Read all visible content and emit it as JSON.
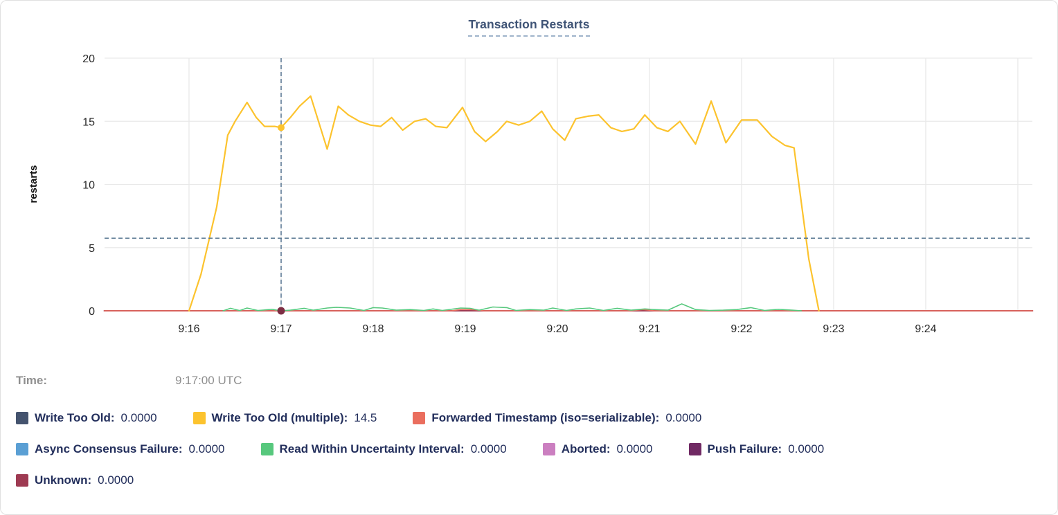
{
  "tooltip": {
    "time_label": "Time:",
    "time_value": "9:17:00 UTC"
  },
  "legend": {
    "rows": [
      [
        0,
        1,
        2
      ],
      [
        3,
        4,
        5,
        6
      ],
      [
        7
      ]
    ]
  },
  "chart_data": {
    "type": "line",
    "title": "Transaction Restarts",
    "xlabel": "",
    "ylabel": "restarts",
    "x_unit": "minutes after 9:00 UTC",
    "xlim": [
      15.08,
      25.16
    ],
    "ylim": [
      0,
      20
    ],
    "grid": "on",
    "legend_position": "bottom",
    "yticks": [
      0,
      5,
      10,
      15,
      20
    ],
    "xgrid_minutes": [
      16,
      17,
      18,
      19,
      20,
      21,
      22,
      23,
      24,
      25
    ],
    "xticks": [
      {
        "m": 16,
        "label": "9:16"
      },
      {
        "m": 17,
        "label": "9:17"
      },
      {
        "m": 18,
        "label": "9:18"
      },
      {
        "m": 19,
        "label": "9:19"
      },
      {
        "m": 20,
        "label": "9:20"
      },
      {
        "m": 21,
        "label": "9:21"
      },
      {
        "m": 22,
        "label": "9:22"
      },
      {
        "m": 23,
        "label": "9:23"
      },
      {
        "m": 24,
        "label": "9:24"
      }
    ],
    "colors": {
      "grid": "#e9e9e9",
      "axis_text": "#262626",
      "crosshair": "#54738f"
    },
    "crosshair": {
      "x": 17.0,
      "y": 5.75,
      "time": "9:17:00 UTC"
    },
    "markers": [
      {
        "series_index": 1,
        "x": 17.0,
        "y": 14.5,
        "color": "#fcc32e",
        "r": 5
      },
      {
        "series_index": 7,
        "x": 17.0,
        "y": 0,
        "color": "#7d2d43",
        "r": 5.5
      }
    ],
    "series": [
      {
        "name": "Write Too Old",
        "legend_label": "Write Too Old:",
        "cursor_value": "0.0000",
        "color": "#44536e",
        "w": 1.5,
        "points": [
          [
            15.08,
            0
          ],
          [
            25.16,
            0
          ]
        ]
      },
      {
        "name": "Write Too Old (multiple)",
        "legend_label": "Write Too Old (multiple):",
        "cursor_value": "14.5",
        "color": "#fcc32e",
        "w": 2.2,
        "points": [
          [
            16.0,
            0
          ],
          [
            16.13,
            2.9
          ],
          [
            16.3,
            8.2
          ],
          [
            16.42,
            13.9
          ],
          [
            16.5,
            15.0
          ],
          [
            16.63,
            16.5
          ],
          [
            16.73,
            15.3
          ],
          [
            16.82,
            14.6
          ],
          [
            16.93,
            14.6
          ],
          [
            17.0,
            14.5
          ],
          [
            17.1,
            15.3
          ],
          [
            17.2,
            16.2
          ],
          [
            17.32,
            17.0
          ],
          [
            17.5,
            12.8
          ],
          [
            17.62,
            16.2
          ],
          [
            17.73,
            15.5
          ],
          [
            17.85,
            15.0
          ],
          [
            17.97,
            14.7
          ],
          [
            18.08,
            14.6
          ],
          [
            18.2,
            15.3
          ],
          [
            18.32,
            14.3
          ],
          [
            18.45,
            15.0
          ],
          [
            18.57,
            15.2
          ],
          [
            18.68,
            14.6
          ],
          [
            18.8,
            14.5
          ],
          [
            18.97,
            16.1
          ],
          [
            19.1,
            14.2
          ],
          [
            19.22,
            13.4
          ],
          [
            19.35,
            14.2
          ],
          [
            19.45,
            15.0
          ],
          [
            19.58,
            14.7
          ],
          [
            19.7,
            15.0
          ],
          [
            19.83,
            15.8
          ],
          [
            19.95,
            14.4
          ],
          [
            20.08,
            13.5
          ],
          [
            20.2,
            15.2
          ],
          [
            20.33,
            15.4
          ],
          [
            20.45,
            15.5
          ],
          [
            20.58,
            14.5
          ],
          [
            20.7,
            14.2
          ],
          [
            20.83,
            14.4
          ],
          [
            20.95,
            15.5
          ],
          [
            21.08,
            14.5
          ],
          [
            21.2,
            14.2
          ],
          [
            21.33,
            15.0
          ],
          [
            21.5,
            13.2
          ],
          [
            21.67,
            16.6
          ],
          [
            21.83,
            13.3
          ],
          [
            22.0,
            15.1
          ],
          [
            22.17,
            15.1
          ],
          [
            22.33,
            13.8
          ],
          [
            22.47,
            13.1
          ],
          [
            22.57,
            12.9
          ],
          [
            22.73,
            4.1
          ],
          [
            22.84,
            0
          ]
        ]
      },
      {
        "name": "Forwarded Timestamp (iso=serializable)",
        "legend_label": "Forwarded Timestamp (iso=serializable):",
        "cursor_value": "0.0000",
        "color": "#ea6e5e",
        "w": 1.6,
        "points": [
          [
            15.08,
            0
          ],
          [
            18.85,
            0
          ],
          [
            18.97,
            0.12
          ],
          [
            19.1,
            0.08
          ],
          [
            19.2,
            0
          ],
          [
            20.8,
            0
          ],
          [
            20.93,
            0.1
          ],
          [
            21.05,
            0
          ],
          [
            25.16,
            0
          ]
        ]
      },
      {
        "name": "Async Consensus Failure",
        "legend_label": "Async Consensus Failure:",
        "cursor_value": "0.0000",
        "color": "#5a9fd4",
        "w": 1.5,
        "points": [
          [
            15.08,
            0
          ],
          [
            25.16,
            0
          ]
        ]
      },
      {
        "name": "Read Within Uncertainty Interval",
        "legend_label": "Read Within Uncertainty Interval:",
        "cursor_value": "0.0000",
        "color": "#57c87d",
        "w": 1.6,
        "points": [
          [
            16.37,
            0
          ],
          [
            16.45,
            0.2
          ],
          [
            16.55,
            0.02
          ],
          [
            16.63,
            0.22
          ],
          [
            16.75,
            0.02
          ],
          [
            16.9,
            0.12
          ],
          [
            17.0,
            0
          ],
          [
            17.1,
            0.05
          ],
          [
            17.25,
            0.2
          ],
          [
            17.35,
            0.05
          ],
          [
            17.5,
            0.22
          ],
          [
            17.6,
            0.28
          ],
          [
            17.75,
            0.22
          ],
          [
            17.9,
            0.03
          ],
          [
            18.0,
            0.25
          ],
          [
            18.1,
            0.22
          ],
          [
            18.25,
            0.05
          ],
          [
            18.4,
            0.1
          ],
          [
            18.55,
            0.03
          ],
          [
            18.65,
            0.15
          ],
          [
            18.75,
            0.03
          ],
          [
            18.95,
            0.22
          ],
          [
            19.05,
            0.2
          ],
          [
            19.15,
            0.05
          ],
          [
            19.3,
            0.3
          ],
          [
            19.45,
            0.25
          ],
          [
            19.55,
            0.03
          ],
          [
            19.7,
            0.1
          ],
          [
            19.85,
            0.05
          ],
          [
            19.95,
            0.22
          ],
          [
            20.1,
            0.03
          ],
          [
            20.2,
            0.15
          ],
          [
            20.35,
            0.22
          ],
          [
            20.5,
            0.03
          ],
          [
            20.65,
            0.2
          ],
          [
            20.8,
            0.05
          ],
          [
            20.95,
            0.15
          ],
          [
            21.05,
            0.1
          ],
          [
            21.2,
            0.05
          ],
          [
            21.35,
            0.55
          ],
          [
            21.5,
            0.1
          ],
          [
            21.65,
            0.03
          ],
          [
            21.8,
            0.05
          ],
          [
            21.95,
            0.1
          ],
          [
            22.1,
            0.25
          ],
          [
            22.25,
            0.03
          ],
          [
            22.4,
            0.12
          ],
          [
            22.55,
            0.05
          ],
          [
            22.65,
            0
          ]
        ]
      },
      {
        "name": "Aborted",
        "legend_label": "Aborted:",
        "cursor_value": "0.0000",
        "color": "#cb7fc0",
        "w": 1.5,
        "points": [
          [
            15.08,
            0
          ],
          [
            25.16,
            0
          ]
        ]
      },
      {
        "name": "Push Failure",
        "legend_label": "Push Failure:",
        "cursor_value": "0.0000",
        "color": "#702963",
        "w": 1.5,
        "points": [
          [
            15.08,
            0
          ],
          [
            25.16,
            0
          ]
        ]
      },
      {
        "name": "Unknown",
        "legend_label": "Unknown:",
        "cursor_value": "0.0000",
        "color": "#9e3a52",
        "w": 2,
        "points": [
          [
            15.08,
            0
          ],
          [
            25.16,
            0
          ]
        ]
      }
    ],
    "draw_order": [
      0,
      3,
      5,
      6,
      7,
      2,
      4,
      1
    ]
  }
}
